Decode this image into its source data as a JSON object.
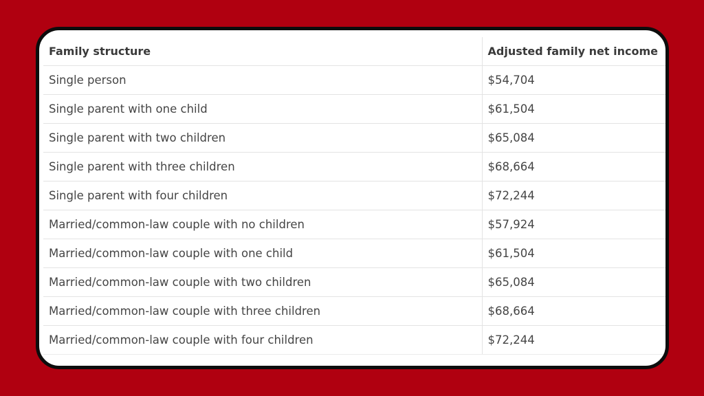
{
  "table": {
    "headers": [
      "Family structure",
      "Adjusted family net income"
    ],
    "rows": [
      [
        "Single person",
        "$54,704"
      ],
      [
        "Single parent with one child",
        "$61,504"
      ],
      [
        "Single parent with two children",
        "$65,084"
      ],
      [
        "Single parent with three children",
        "$68,664"
      ],
      [
        "Single parent with four children",
        "$72,244"
      ],
      [
        "Married/common-law couple with no children",
        "$57,924"
      ],
      [
        "Married/common-law couple with one child",
        "$61,504"
      ],
      [
        "Married/common-law couple with two children",
        "$65,084"
      ],
      [
        "Married/common-law couple with three children",
        "$68,664"
      ],
      [
        "Married/common-law couple with four children",
        "$72,244"
      ]
    ]
  },
  "colors": {
    "background": "#b00010",
    "card": "#ffffff",
    "border": "#0d0d0d"
  }
}
